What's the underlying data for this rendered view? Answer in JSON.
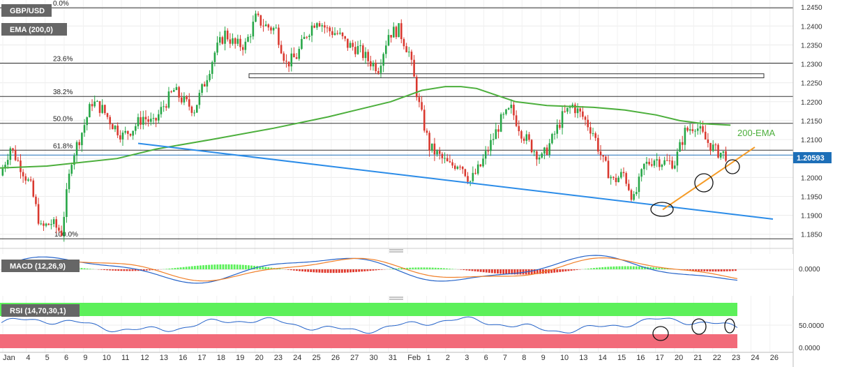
{
  "chart_data": {
    "type": "candlestick",
    "symbol": "GBP/USD",
    "indicator_label": "EMA (200,0)",
    "ema_label": "200-EMA",
    "last_price_label": "1.20593",
    "colors": {
      "up": "#26a646",
      "down": "#d9382e",
      "ema": "#4caf3c",
      "trend_down": "#2b8ce8",
      "trend_up": "#f59b26",
      "macd": "#2563c9",
      "signal": "#f07f28",
      "rsi": "#2563c9",
      "rsi_over": "#5cf05a",
      "rsi_under": "#f26b7a"
    },
    "y_ticks": [
      "1.2450",
      "1.2400",
      "1.2350",
      "1.2300",
      "1.2250",
      "1.2200",
      "1.2150",
      "1.2100",
      "1.2050",
      "1.2000",
      "1.1950",
      "1.1900",
      "1.1850"
    ],
    "ylim": [
      1.182,
      1.2465
    ],
    "fib_levels": [
      {
        "label": "0.0%",
        "price": 1.2448
      },
      {
        "label": "23.6%",
        "price": 1.2302
      },
      {
        "label": "38.2%",
        "price": 1.2214
      },
      {
        "label": "50.0%",
        "price": 1.2143
      },
      {
        "label": "61.8%",
        "price": 1.2072
      },
      {
        "label": "100.0%",
        "price": 1.1838
      }
    ],
    "price_line": 1.2059,
    "x_labels": [
      "Jan",
      "4",
      "5",
      "6",
      "9",
      "10",
      "11",
      "12",
      "13",
      "16",
      "17",
      "18",
      "19",
      "20",
      "23",
      "24",
      "25",
      "26",
      "27",
      "30",
      "31",
      "Feb",
      "1",
      "2",
      "3",
      "6",
      "7",
      "8",
      "9",
      "10",
      "13",
      "14",
      "15",
      "16",
      "17",
      "20",
      "21",
      "22",
      "23",
      "24",
      "26"
    ],
    "candles_per_day": 4,
    "close_path": [
      1.2005,
      1.208,
      1.203,
      1.1975,
      1.1865,
      1.188,
      1.1855,
      1.205,
      1.212,
      1.22,
      1.218,
      1.214,
      1.211,
      1.213,
      1.216,
      1.214,
      1.219,
      1.223,
      1.22,
      1.218,
      1.225,
      1.233,
      1.238,
      1.235,
      1.235,
      1.242,
      1.24,
      1.239,
      1.23,
      1.232,
      1.238,
      1.242,
      1.239,
      1.238,
      1.235,
      1.234,
      1.231,
      1.229,
      1.238,
      1.239,
      1.233,
      1.219,
      1.208,
      1.2055,
      1.203,
      1.204,
      1.199,
      1.203,
      1.209,
      1.215,
      1.218,
      1.212,
      1.208,
      1.205,
      1.21,
      1.216,
      1.219,
      1.216,
      1.212,
      1.204,
      1.199,
      1.201,
      1.194,
      1.203,
      1.205,
      1.204,
      1.204,
      1.212,
      1.214,
      1.21,
      1.207,
      1.206
    ],
    "ema_path": [
      1.2025,
      1.203,
      1.205,
      1.2075,
      1.21,
      1.213,
      1.216,
      1.22,
      1.223,
      1.224,
      1.224,
      1.2235,
      1.22,
      1.219,
      1.2185,
      1.2178,
      1.2165,
      1.215,
      1.2142,
      1.2138
    ],
    "ema_y_x": [
      0,
      0.06,
      0.15,
      0.2,
      0.27,
      0.35,
      0.42,
      0.5,
      0.54,
      0.57,
      0.59,
      0.61,
      0.66,
      0.7,
      0.76,
      0.8,
      0.84,
      0.87,
      0.9,
      0.935
    ],
    "resistance_zone": {
      "from": 1.2265,
      "to": 1.2272
    },
    "trend_down": {
      "p1": 1.209,
      "p2": 1.189
    },
    "trend_up": {
      "p1": 1.1915,
      "p2": 1.208
    },
    "macd": {
      "label": "MACD (12,26,9)",
      "ticks": [
        "0.0000"
      ]
    },
    "rsi": {
      "label": "RSI (14,70,30,1)",
      "ticks": [
        "50.0000",
        "0.0000"
      ]
    }
  }
}
